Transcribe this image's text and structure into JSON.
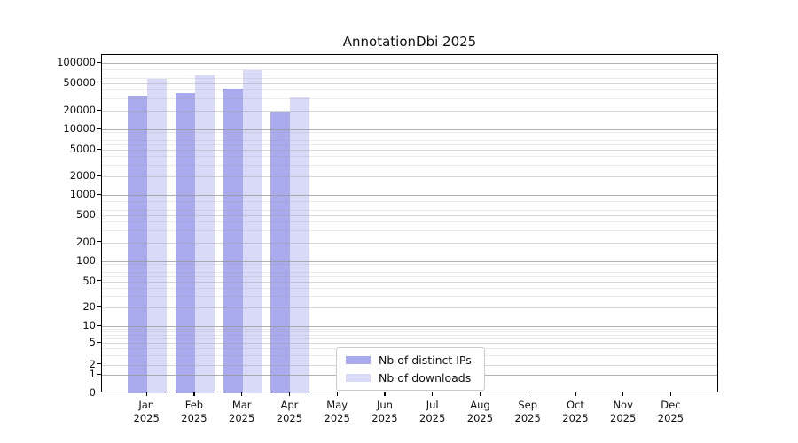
{
  "chart_data": {
    "type": "bar",
    "title": "AnnotationDbi 2025",
    "yscale": "symlog",
    "ylim": [
      0,
      130000
    ],
    "grid": true,
    "legend_position": "bottom-center",
    "categories": [
      {
        "month": "Jan",
        "year": "2025"
      },
      {
        "month": "Feb",
        "year": "2025"
      },
      {
        "month": "Mar",
        "year": "2025"
      },
      {
        "month": "Apr",
        "year": "2025"
      },
      {
        "month": "May",
        "year": "2025"
      },
      {
        "month": "Jun",
        "year": "2025"
      },
      {
        "month": "Jul",
        "year": "2025"
      },
      {
        "month": "Aug",
        "year": "2025"
      },
      {
        "month": "Sep",
        "year": "2025"
      },
      {
        "month": "Oct",
        "year": "2025"
      },
      {
        "month": "Nov",
        "year": "2025"
      },
      {
        "month": "Dec",
        "year": "2025"
      }
    ],
    "series": [
      {
        "name": "Nb of distinct IPs",
        "color": "#aaaaee",
        "values": [
          33000,
          36000,
          41000,
          19500,
          null,
          null,
          null,
          null,
          null,
          null,
          null,
          null
        ]
      },
      {
        "name": "Nb of downloads",
        "color": "#d9d9f8",
        "values": [
          58000,
          65000,
          79000,
          31000,
          null,
          null,
          null,
          null,
          null,
          null,
          null,
          null
        ]
      }
    ],
    "y_ticks": [
      0,
      1,
      2,
      5,
      10,
      20,
      50,
      100,
      200,
      500,
      1000,
      2000,
      5000,
      10000,
      20000,
      50000,
      100000
    ]
  }
}
